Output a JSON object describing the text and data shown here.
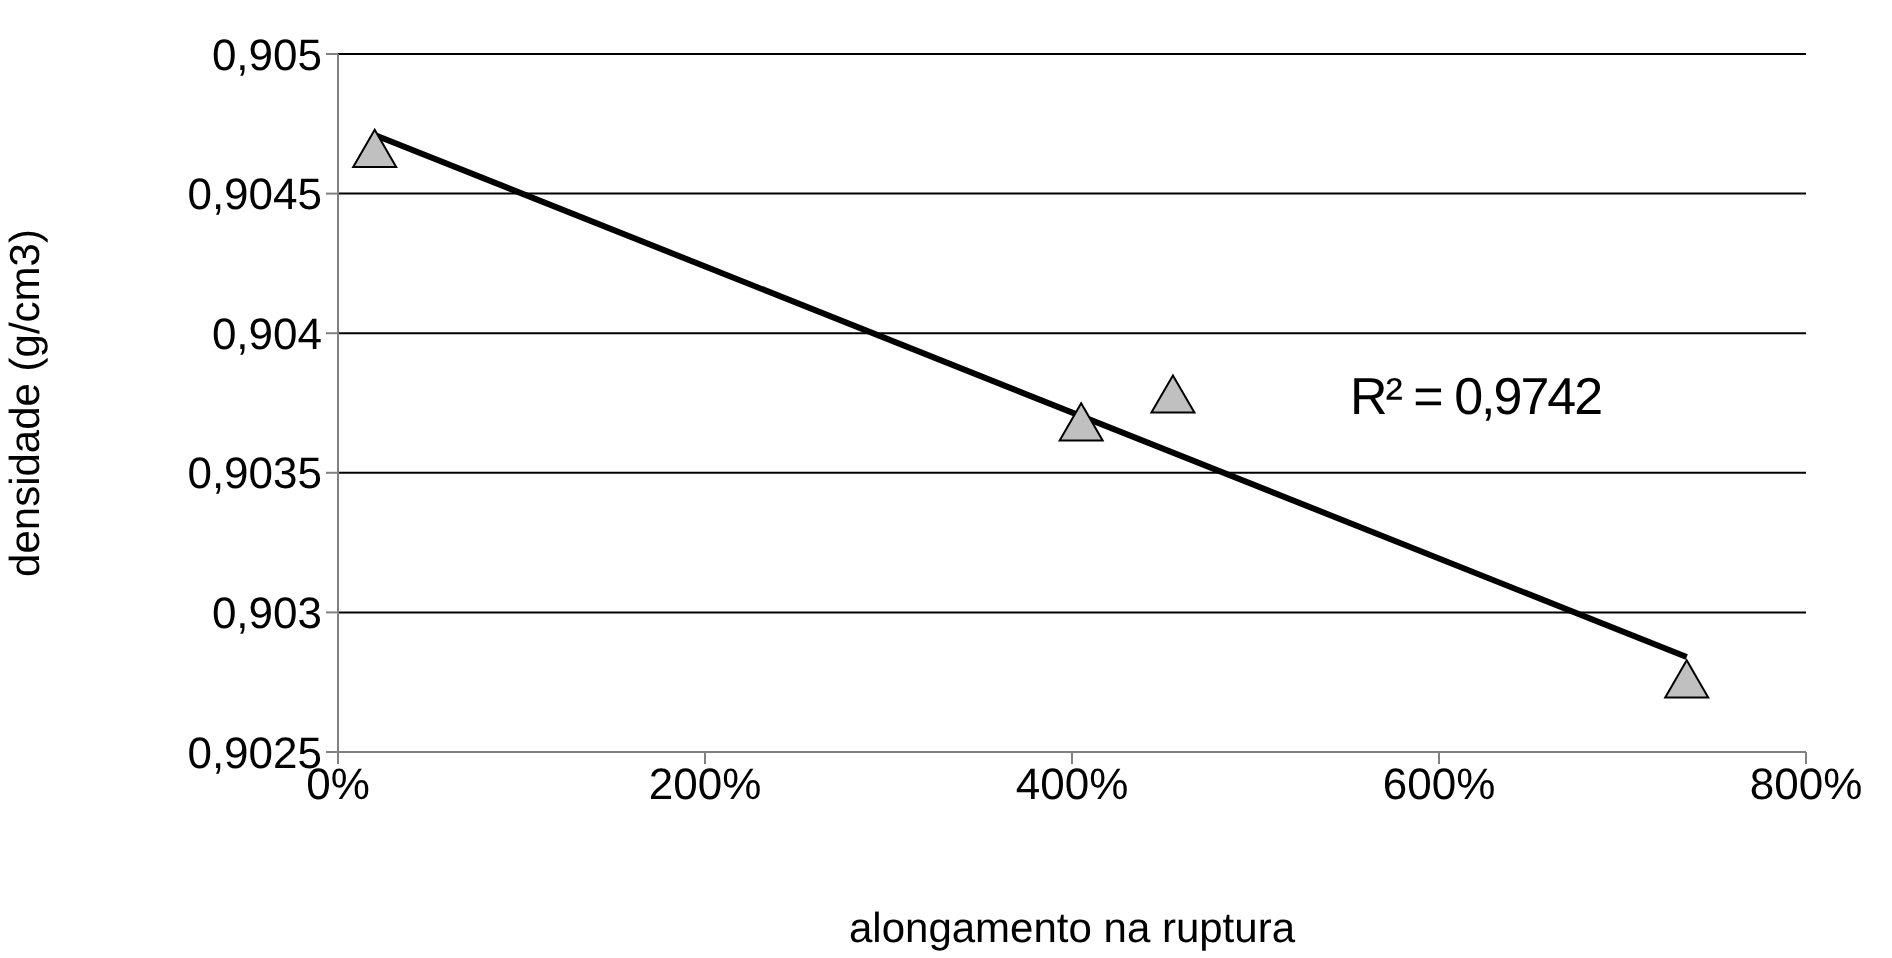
{
  "chart_data": {
    "type": "scatter",
    "xlabel": "alongamento na ruptura",
    "ylabel": "densidade (g/cm3)",
    "xlim": [
      0,
      800
    ],
    "xticks": [
      {
        "value": 0,
        "label": "0%"
      },
      {
        "value": 200,
        "label": "200%"
      },
      {
        "value": 400,
        "label": "400%"
      },
      {
        "value": 600,
        "label": "600%"
      },
      {
        "value": 800,
        "label": "800%"
      }
    ],
    "ylim": [
      0.9025,
      0.905
    ],
    "yticks": [
      {
        "value": 0.9025,
        "label": "0,9025"
      },
      {
        "value": 0.903,
        "label": "0,903"
      },
      {
        "value": 0.9035,
        "label": "0,9035"
      },
      {
        "value": 0.904,
        "label": "0,904"
      },
      {
        "value": 0.9045,
        "label": "0,9045"
      },
      {
        "value": 0.905,
        "label": "0,905"
      }
    ],
    "grid": "y",
    "legend": false,
    "marker": "triangle",
    "series": [
      {
        "color": "#c0c0c0",
        "x": [
          20,
          405,
          455,
          735
        ],
        "values": [
          0.90464,
          0.90366,
          0.90376,
          0.90274
        ]
      },
      {
        "type": "line",
        "color": "#000000",
        "x": [
          20,
          735
        ],
        "values": [
          0.90471,
          0.90284
        ],
        "marker": "none",
        "line_style": "solid"
      }
    ],
    "annotations": [
      "R² = 0,9742"
    ]
  }
}
